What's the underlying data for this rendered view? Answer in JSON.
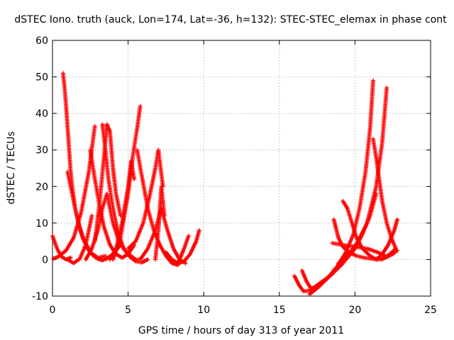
{
  "chart_data": {
    "type": "scatter",
    "title": "dSTEC Iono. truth (auck, Lon=174, Lat=-36, h=132): STEC-STEC_elemax in phase cont",
    "xlabel": "GPS time / hours of day 313 of year 2011",
    "ylabel": "dSTEC  / TECUs",
    "xlim": [
      0,
      25
    ],
    "ylim": [
      -10,
      60
    ],
    "x_ticks": [
      "0",
      "5",
      "10",
      "15",
      "20",
      "25"
    ],
    "y_ticks": [
      "-10",
      "0",
      "10",
      "20",
      "30",
      "40",
      "50",
      "60"
    ],
    "grid": true,
    "marker": "+",
    "color": "#ff0000",
    "series": [
      {
        "x": [
          0.0,
          0.3,
          0.6,
          0.9,
          1.2
        ],
        "y": [
          6.5,
          3.0,
          0.8,
          0.0,
          0.5
        ]
      },
      {
        "x": [
          -0.1,
          0.4,
          0.9,
          1.4,
          1.9,
          2.4,
          2.8
        ],
        "y": [
          0.0,
          0.8,
          2.5,
          6.0,
          13.0,
          24.0,
          36.5
        ]
      },
      {
        "x": [
          0.7,
          0.8,
          0.9,
          1.0,
          1.1,
          1.2,
          1.3,
          1.5,
          1.8,
          2.1,
          2.4,
          2.7,
          3.0,
          3.3,
          3.6,
          4.0,
          4.5
        ],
        "y": [
          51.0,
          47.0,
          42.0,
          36.0,
          30.0,
          24.0,
          20.0,
          14.0,
          8.5,
          5.0,
          2.5,
          1.0,
          0.2,
          -0.2,
          0.3,
          1.5,
          4.0
        ]
      },
      {
        "x": [
          1.0,
          1.4,
          1.8,
          2.2,
          2.6
        ],
        "y": [
          0.0,
          -1.0,
          0.2,
          4.0,
          12.0
        ]
      },
      {
        "x": [
          1.0,
          1.3,
          1.6,
          2.0,
          2.5,
          3.0,
          3.5
        ],
        "y": [
          24.0,
          18.0,
          12.0,
          6.0,
          2.0,
          0.5,
          1.0
        ]
      },
      {
        "x": [
          2.5,
          2.8,
          3.1,
          3.4,
          3.8,
          4.2,
          4.6,
          5.0,
          5.4
        ],
        "y": [
          30.0,
          22.0,
          15.0,
          9.0,
          4.0,
          1.5,
          0.5,
          1.5,
          4.0
        ]
      },
      {
        "x": [
          2.2,
          2.6,
          3.0,
          3.3,
          3.6,
          4.0,
          4.4,
          4.8,
          5.2,
          5.5,
          5.8
        ],
        "y": [
          0.0,
          3.0,
          8.0,
          14.0,
          18.0,
          10.0,
          5.0,
          2.5,
          1.0,
          0.0,
          0.0
        ]
      },
      {
        "x": [
          2.8,
          3.1,
          3.4,
          3.6,
          3.8,
          4.0,
          4.2,
          4.5
        ],
        "y": [
          5.0,
          15.0,
          28.0,
          37.0,
          35.0,
          25.0,
          18.0,
          12.0
        ]
      },
      {
        "x": [
          3.3,
          3.5,
          3.7,
          4.0,
          4.3,
          4.7,
          5.1,
          5.5,
          5.9,
          6.3
        ],
        "y": [
          37.0,
          30.0,
          22.0,
          14.0,
          8.0,
          3.0,
          0.8,
          -0.5,
          -0.8,
          0.0
        ]
      },
      {
        "x": [
          3.8,
          4.2,
          4.6,
          5.0,
          5.2,
          5.4
        ],
        "y": [
          0.0,
          3.0,
          10.0,
          20.0,
          27.0,
          22.0
        ]
      },
      {
        "x": [
          4.0,
          4.5,
          5.0,
          5.3,
          5.6,
          5.8
        ],
        "y": [
          0.0,
          6.0,
          18.0,
          28.0,
          36.0,
          42.0
        ]
      },
      {
        "x": [
          5.6,
          5.9,
          6.3,
          6.7,
          7.1,
          7.5,
          7.9,
          8.3
        ],
        "y": [
          30.0,
          23.0,
          14.0,
          8.0,
          4.0,
          1.0,
          -1.0,
          -1.5
        ]
      },
      {
        "x": [
          5.0,
          5.5,
          6.0,
          6.4,
          6.8,
          7.0,
          7.3
        ],
        "y": [
          3.0,
          5.0,
          10.0,
          17.0,
          25.0,
          30.0,
          20.0
        ]
      },
      {
        "x": [
          5.8,
          6.3,
          6.8,
          7.2,
          7.6,
          8.0,
          8.4,
          8.8
        ],
        "y": [
          0.0,
          3.0,
          8.0,
          14.0,
          8.0,
          3.0,
          0.0,
          -1.0
        ]
      },
      {
        "x": [
          6.8,
          7.0,
          7.2,
          7.4
        ],
        "y": [
          0.0,
          8.0,
          20.0,
          12.0
        ]
      },
      {
        "x": [
          7.5,
          7.9,
          8.3,
          8.7,
          9.0
        ],
        "y": [
          2.0,
          0.0,
          -1.0,
          3.0,
          6.5
        ]
      },
      {
        "x": [
          8.3,
          8.7,
          9.1,
          9.5,
          9.7
        ],
        "y": [
          -1.0,
          -0.5,
          1.5,
          5.0,
          8.0
        ]
      },
      {
        "x": [
          16.0,
          16.3,
          16.6,
          17.0,
          17.5,
          18.0,
          18.5
        ],
        "y": [
          -4.5,
          -7.0,
          -8.7,
          -8.5,
          -7.0,
          -5.5,
          -4.0
        ]
      },
      {
        "x": [
          16.5,
          16.8,
          17.1,
          17.6,
          18.1,
          18.6,
          19.1,
          19.6,
          20.0,
          20.3
        ],
        "y": [
          -3.0,
          -6.0,
          -8.0,
          -7.0,
          -5.5,
          -3.5,
          -1.5,
          1.0,
          3.0,
          5.5
        ]
      },
      {
        "x": [
          17.0,
          17.6,
          18.2,
          18.8,
          19.4,
          19.9,
          20.3,
          20.7,
          21.0,
          21.2
        ],
        "y": [
          -9.5,
          -7.5,
          -5.0,
          -2.0,
          2.0,
          7.0,
          14.0,
          24.0,
          36.0,
          49.0
        ]
      },
      {
        "x": [
          18.6,
          18.9,
          19.2,
          19.6,
          20.1,
          20.6,
          21.2,
          21.8,
          22.3,
          22.7
        ],
        "y": [
          11.0,
          6.0,
          3.5,
          2.0,
          1.0,
          0.5,
          0.2,
          0.0,
          1.5,
          3.0
        ]
      },
      {
        "x": [
          18.5,
          19.2,
          20.0,
          20.8,
          21.5,
          22.0
        ],
        "y": [
          4.5,
          4.0,
          3.5,
          3.0,
          2.0,
          1.0
        ]
      },
      {
        "x": [
          19.2,
          19.5,
          19.8,
          20.1,
          20.5,
          21.0,
          21.4
        ],
        "y": [
          16.0,
          14.0,
          10.0,
          6.0,
          3.0,
          1.0,
          0.0
        ]
      },
      {
        "x": [
          18.9,
          19.5,
          20.0,
          20.5,
          21.0,
          21.4
        ],
        "y": [
          -1.0,
          0.5,
          3.0,
          7.0,
          12.0,
          18.0
        ]
      },
      {
        "x": [
          19.0,
          19.6,
          20.2,
          20.8,
          21.4,
          21.8,
          22.1
        ],
        "y": [
          -0.5,
          1.5,
          5.0,
          10.0,
          20.0,
          32.0,
          47.0
        ]
      },
      {
        "x": [
          21.2,
          21.4,
          21.6,
          21.8,
          22.1,
          22.4,
          22.7
        ],
        "y": [
          33.0,
          28.0,
          22.0,
          16.0,
          10.0,
          6.0,
          3.0
        ]
      },
      {
        "x": [
          21.4,
          21.8,
          22.2,
          22.6,
          22.8
        ],
        "y": [
          0.0,
          1.5,
          4.0,
          8.0,
          11.0
        ]
      },
      {
        "x": [
          21.5,
          22.0,
          22.5,
          22.8
        ],
        "y": [
          0.0,
          0.5,
          1.5,
          2.5
        ]
      }
    ]
  }
}
